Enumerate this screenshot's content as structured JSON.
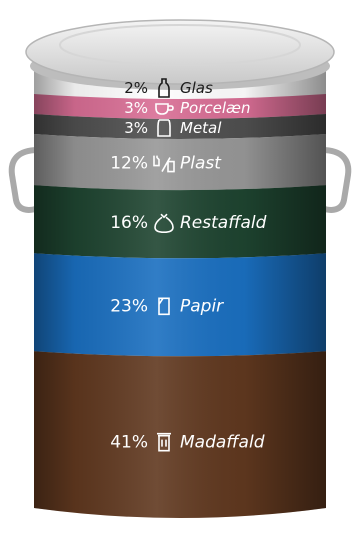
{
  "chart_data": {
    "type": "bar",
    "orientation": "stacked-vertical",
    "categories": [
      "Glas",
      "Porcelæn",
      "Metal",
      "Plast",
      "Restaffald",
      "Papir",
      "Madaffald"
    ],
    "values": [
      2,
      3,
      3,
      12,
      16,
      23,
      41
    ],
    "value_labels": [
      "2%",
      "3%",
      "3%",
      "12%",
      "16%",
      "23%",
      "41%"
    ],
    "icons": [
      "bottle-icon",
      "cup-icon",
      "can-icon",
      "plastic-bottles-icon",
      "trash-bag-icon",
      "paper-icon",
      "food-waste-icon"
    ],
    "colors": [
      "#ffffff",
      "#d96e95",
      "#4f4f4f",
      "#979797",
      "#1e4430",
      "#1a6fc0",
      "#60381f"
    ],
    "text_colors": [
      "#1a1a1a",
      "#ffffff",
      "#ffffff",
      "#ffffff",
      "#ffffff",
      "#ffffff",
      "#ffffff"
    ],
    "unit": "%",
    "grid": false,
    "legend": "none"
  }
}
